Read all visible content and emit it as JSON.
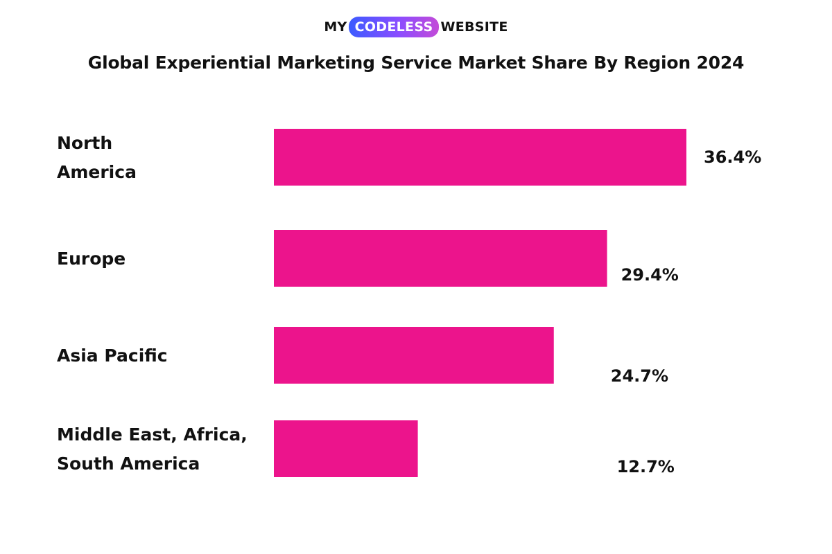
{
  "logo": {
    "left": "MY",
    "highlight": "CODELESS",
    "right": "WEBSITE"
  },
  "chart_data": {
    "type": "bar",
    "orientation": "horizontal",
    "title": "Global Experiential Marketing Service Market Share By Region 2024",
    "categories": [
      [
        "North",
        "America"
      ],
      [
        "Europe"
      ],
      [
        "Asia Pacific"
      ],
      [
        "Middle East, Africa,",
        "South America"
      ]
    ],
    "values": [
      36.4,
      29.4,
      24.7,
      12.7
    ],
    "value_labels": [
      "36.4%",
      "29.4%",
      "24.7%",
      "12.7%"
    ],
    "unit": "%",
    "bar_color": "#ec148c",
    "xlim": [
      0,
      36.4
    ],
    "grid": false,
    "legend": "none"
  }
}
